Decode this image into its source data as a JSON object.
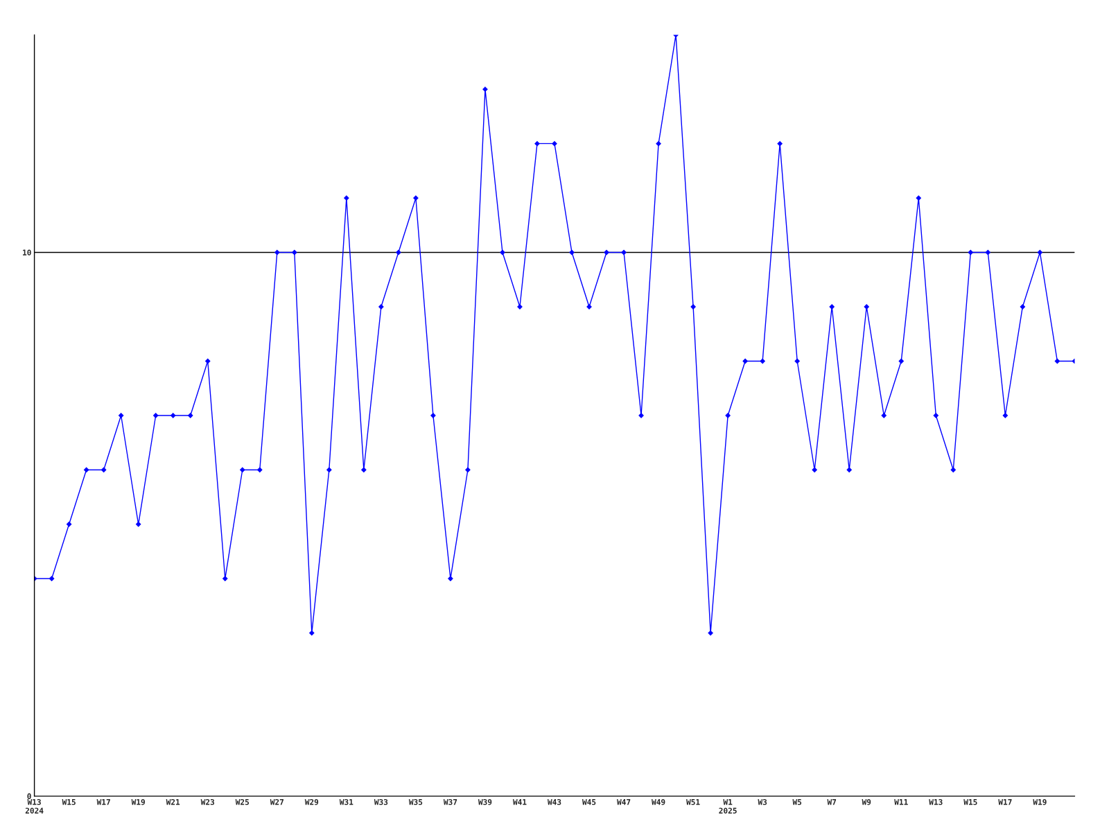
{
  "chart_data": {
    "type": "line",
    "categories": [
      "W13\n2024",
      null,
      "W15",
      null,
      "W17",
      null,
      "W19",
      null,
      "W21",
      null,
      "W23",
      null,
      "W25",
      null,
      "W27",
      null,
      "W29",
      null,
      "W31",
      null,
      "W33",
      null,
      "W35",
      null,
      "W37",
      null,
      "W39",
      null,
      "W41",
      null,
      "W43",
      null,
      "W45",
      null,
      "W47",
      null,
      "W49",
      null,
      "W51",
      null,
      "W1\n2025",
      null,
      "W3",
      null,
      "W5",
      null,
      "W7",
      null,
      "W9",
      null,
      "W11",
      null,
      "W13",
      null,
      "W15",
      null,
      "W17",
      null,
      "W19",
      null,
      null
    ],
    "series": [
      {
        "color": "#0000ff",
        "values": [
          4,
          4,
          5,
          6,
          6,
          7,
          5,
          7,
          7,
          7,
          8,
          4,
          6,
          6,
          10,
          10,
          3,
          6,
          11,
          6,
          9,
          10,
          11,
          7,
          4,
          6,
          13,
          10,
          9,
          12,
          12,
          10,
          9,
          10,
          10,
          7,
          12,
          14,
          9,
          3,
          7,
          8,
          8,
          12,
          8,
          6,
          9,
          6,
          9,
          7,
          8,
          11,
          7,
          6,
          10,
          10,
          7,
          9,
          10,
          8,
          8
        ]
      }
    ],
    "ylim": [
      0,
      14
    ],
    "yticks": [
      0,
      10
    ],
    "grid": "y",
    "marker": "diamond",
    "line_style": "solid"
  }
}
